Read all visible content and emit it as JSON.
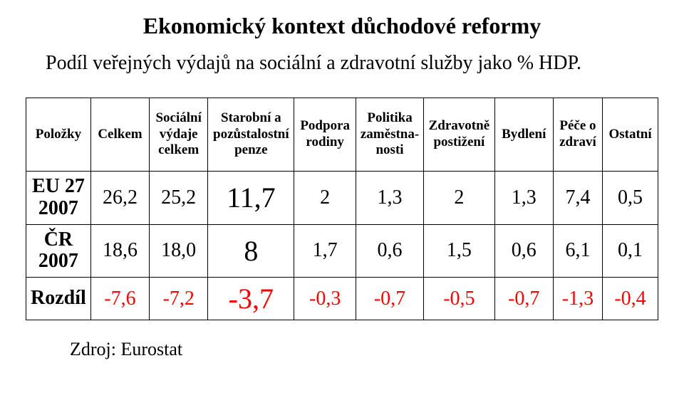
{
  "title": "Ekonomický kontext důchodové reformy",
  "subtitle": "Podíl veřejných výdajů na sociální a zdravotní služby jako % HDP.",
  "table": {
    "columns": [
      "Položky",
      "Celkem",
      "Sociální výdaje celkem",
      "Starobní a pozůstalostní penze",
      "Podpora rodiny",
      "Politika zaměstna­nosti",
      "Zdravotně postižení",
      "Bydlení",
      "Péče o zdraví",
      "Ostatní"
    ],
    "rows": [
      {
        "label": "EU 27 2007",
        "cells": [
          "26,2",
          "25,2",
          "11,7",
          "2",
          "1,3",
          "2",
          "1,3",
          "7,4",
          "0,5"
        ],
        "big_index": 2,
        "neg": false
      },
      {
        "label": "ČR 2007",
        "cells": [
          "18,6",
          "18,0",
          "8",
          "1,7",
          "0,6",
          "1,5",
          "0,6",
          "6,1",
          "0,1"
        ],
        "big_index": 2,
        "neg": false
      },
      {
        "label": "Rozdíl",
        "cells": [
          "-7,6",
          "-7,2",
          "-3,7",
          "-0,3",
          "-0,7",
          "-0,5",
          "-0,7",
          "-1,3",
          "-0,4"
        ],
        "big_index": 2,
        "neg": true
      }
    ]
  },
  "source": "Zdroj:  Eurostat",
  "styling": {
    "background_color": "#ffffff",
    "text_color": "#000000",
    "negative_color": "#ff0000",
    "border_color": "#000000",
    "title_fontsize": 32,
    "subtitle_fontsize": 28,
    "header_fontsize": 19,
    "body_fontsize": 28,
    "big_cell_fontsize": 40,
    "source_fontsize": 26,
    "font_family": "Times New Roman",
    "col_widths_pct": [
      10.5,
      9.5,
      9.5,
      14,
      10,
      11,
      11.5,
      9.5,
      8,
      9
    ]
  }
}
